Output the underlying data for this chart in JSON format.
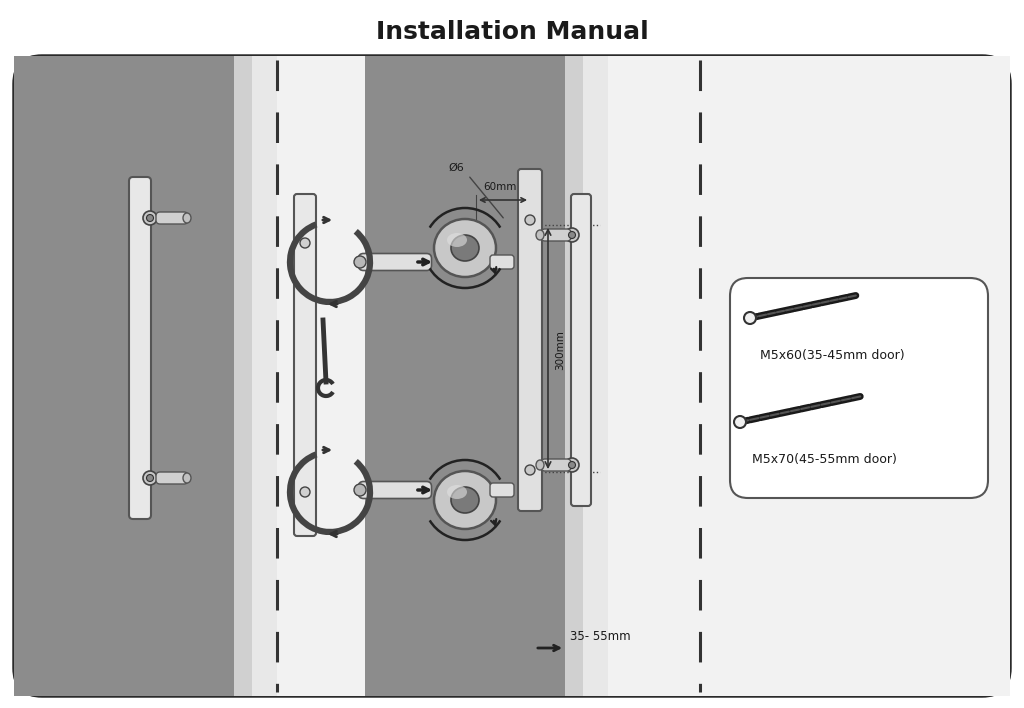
{
  "title": "Installation Manual",
  "title_fontsize": 18,
  "title_fontweight": "bold",
  "bg_outer": "#ffffff",
  "bg_gray_dark": "#878787",
  "bg_gray_mid": "#999999",
  "bg_white": "#f8f8f8",
  "border_color": "#2a2a2a",
  "text_color": "#1a1a1a",
  "screw_label_1": "M5x60(35-45mm door)",
  "screw_label_2": "M5x70(45-55mm door)",
  "dim_60mm": "60mm",
  "dim_300mm": "300mm",
  "dim_d6": "Ø6",
  "dim_35_55": "35- 55mm"
}
